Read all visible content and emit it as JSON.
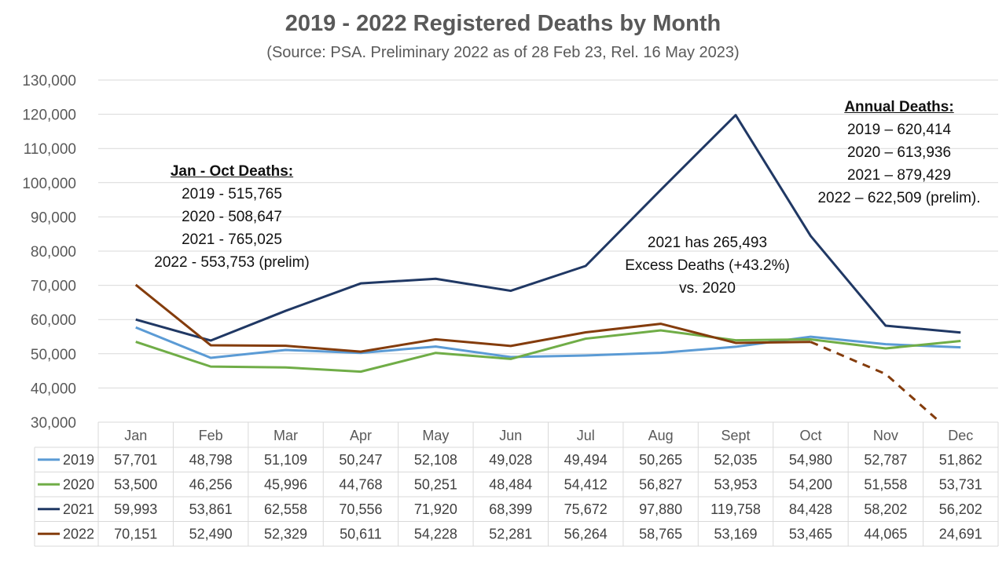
{
  "chart_data": {
    "type": "line",
    "title": "2019 - 2022 Registered Deaths by Month",
    "subtitle": "(Source: PSA. Preliminary 2022 as of 28 Feb 23, Rel. 16 May 2023)",
    "categories": [
      "Jan",
      "Feb",
      "Mar",
      "Apr",
      "May",
      "Jun",
      "Jul",
      "Aug",
      "Sept",
      "Oct",
      "Nov",
      "Dec"
    ],
    "ylim": [
      30000,
      130000
    ],
    "yticks": [
      "30,000",
      "40,000",
      "50,000",
      "60,000",
      "70,000",
      "80,000",
      "90,000",
      "100,000",
      "110,000",
      "120,000",
      "130,000"
    ],
    "grid": true,
    "series": [
      {
        "name": "2019",
        "color": "#5B9BD5",
        "values": [
          57701,
          48798,
          51109,
          50247,
          52108,
          49028,
          49494,
          50265,
          52035,
          54980,
          52787,
          51862
        ],
        "labels": [
          "57,701",
          "48,798",
          "51,109",
          "50,247",
          "52,108",
          "49,028",
          "49,494",
          "50,265",
          "52,035",
          "54,980",
          "52,787",
          "51,862"
        ]
      },
      {
        "name": "2020",
        "color": "#70AD47",
        "values": [
          53500,
          46256,
          45996,
          44768,
          50251,
          48484,
          54412,
          56827,
          53953,
          54200,
          51558,
          53731
        ],
        "labels": [
          "53,500",
          "46,256",
          "45,996",
          "44,768",
          "50,251",
          "48,484",
          "54,412",
          "56,827",
          "53,953",
          "54,200",
          "51,558",
          "53,731"
        ]
      },
      {
        "name": "2021",
        "color": "#203864",
        "values": [
          59993,
          53861,
          62558,
          70556,
          71920,
          68399,
          75672,
          97880,
          119758,
          84428,
          58202,
          56202
        ],
        "labels": [
          "59,993",
          "53,861",
          "62,558",
          "70,556",
          "71,920",
          "68,399",
          "75,672",
          "97,880",
          "119,758",
          "84,428",
          "58,202",
          "56,202"
        ]
      },
      {
        "name": "2022",
        "color": "#843C0C",
        "values": [
          70151,
          52490,
          52329,
          50611,
          54228,
          52281,
          56264,
          58765,
          53169,
          53465,
          44065,
          24691
        ],
        "labels": [
          "70,151",
          "52,490",
          "52,329",
          "50,611",
          "54,228",
          "52,281",
          "56,264",
          "58,765",
          "53,169",
          "53,465",
          "44,065",
          "24,691"
        ],
        "dashed_from_index": 9
      }
    ],
    "annotations": {
      "jan_oct": {
        "heading": "Jan - Oct Deaths:",
        "lines": [
          "2019 - 515,765",
          "2020 - 508,647",
          "2021 - 765,025",
          "2022 - 553,753 (prelim)"
        ]
      },
      "excess": {
        "lines": [
          "2021 has 265,493",
          "Excess Deaths (+43.2%)",
          "vs. 2020"
        ]
      },
      "annual": {
        "heading": "Annual Deaths:",
        "lines": [
          "2019 – 620,414",
          "2020 – 613,936",
          "2021 – 879,429",
          "2022 – 622,509 (prelim)."
        ]
      }
    }
  }
}
